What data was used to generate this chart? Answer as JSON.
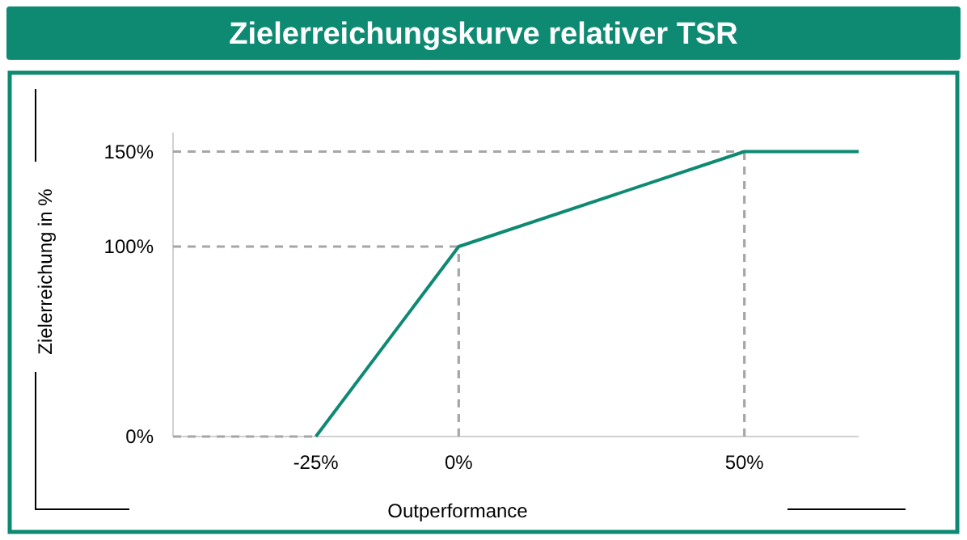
{
  "chart_data": {
    "type": "line",
    "title": "Zielerreichungskurve relativer TSR",
    "xlabel": "Outperformance",
    "ylabel": "Zielerreichung in %",
    "x": [
      -25,
      0,
      50,
      70
    ],
    "series": [
      {
        "color": "#0e8a73",
        "values": [
          0,
          100,
          150,
          150
        ]
      }
    ],
    "xlim": [
      -50,
      70
    ],
    "xticks": [
      {
        "value": -25,
        "label": "-25%"
      },
      {
        "value": 0,
        "label": "0%"
      },
      {
        "value": 50,
        "label": "50%"
      }
    ],
    "ylim": [
      0,
      160
    ],
    "yticks": [
      {
        "value": 0,
        "label": "0%"
      },
      {
        "value": 100,
        "label": "100%"
      },
      {
        "value": 150,
        "label": "150%"
      }
    ],
    "ref_lines": [
      {
        "axis": "y",
        "value": 0,
        "color": "#a6a6a6",
        "line_style": "dashed"
      },
      {
        "axis": "y",
        "value": 100,
        "color": "#a6a6a6",
        "line_style": "dashed"
      },
      {
        "axis": "y",
        "value": 150,
        "color": "#a6a6a6",
        "line_style": "dashed"
      },
      {
        "axis": "x",
        "value": 0,
        "color": "#a6a6a6",
        "line_style": "dashed"
      },
      {
        "axis": "x",
        "value": 50,
        "color": "#a6a6a6",
        "line_style": "dashed"
      }
    ],
    "grid": false,
    "marker": "none",
    "line_style": "solid"
  }
}
